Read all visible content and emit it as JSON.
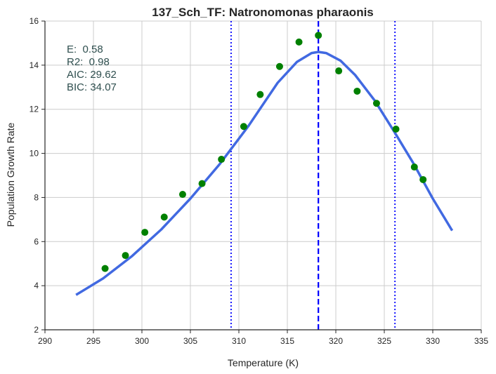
{
  "chart_data": {
    "type": "scatter",
    "title": "137_Sch_TF: Natronomonas pharaonis",
    "xlabel": "Temperature (K)",
    "ylabel": "Population Growth Rate",
    "xlim": [
      290,
      335
    ],
    "ylim": [
      2,
      16
    ],
    "xticks": [
      290,
      295,
      300,
      305,
      310,
      315,
      320,
      325,
      330,
      335
    ],
    "yticks": [
      2,
      4,
      6,
      8,
      10,
      12,
      14,
      16
    ],
    "grid": true,
    "colors": {
      "points": "#008000",
      "fit": "#4169e1",
      "peak_line": "#0000ff",
      "bound_lines": "#0000ff",
      "stats_text": "#2f4f4f",
      "grid": "#cccccc"
    },
    "series": [
      {
        "type": "scatter",
        "x": [
          296.2,
          298.3,
          300.3,
          302.3,
          304.2,
          306.2,
          308.2,
          310.5,
          312.2,
          314.2,
          316.2,
          318.2,
          320.3,
          322.2,
          324.2,
          326.2,
          328.1,
          329.0
        ],
        "y": [
          4.78,
          5.37,
          6.42,
          7.11,
          8.14,
          8.63,
          9.73,
          11.22,
          12.67,
          13.94,
          15.05,
          15.35,
          13.74,
          12.82,
          12.27,
          11.1,
          9.38,
          8.81
        ]
      },
      {
        "type": "line",
        "x": [
          293.2,
          296.0,
          299.0,
          302.0,
          305.0,
          308.0,
          311.0,
          314.0,
          316.0,
          317.5,
          318.2,
          319.0,
          320.5,
          322.0,
          324.0,
          326.0,
          328.0,
          330.0,
          332.0
        ],
        "y": [
          3.58,
          4.33,
          5.35,
          6.55,
          7.95,
          9.5,
          11.25,
          13.2,
          14.15,
          14.55,
          14.6,
          14.55,
          14.2,
          13.55,
          12.4,
          11.0,
          9.55,
          7.95,
          6.5
        ]
      }
    ],
    "vlines": [
      {
        "x": 318.2,
        "style": "dashed"
      },
      {
        "x": 309.2,
        "style": "dotted"
      },
      {
        "x": 326.1,
        "style": "dotted"
      }
    ],
    "annotations": [
      "E:  0.58",
      "R2:  0.98",
      "AIC: 29.62",
      "BIC: 34.07"
    ]
  }
}
